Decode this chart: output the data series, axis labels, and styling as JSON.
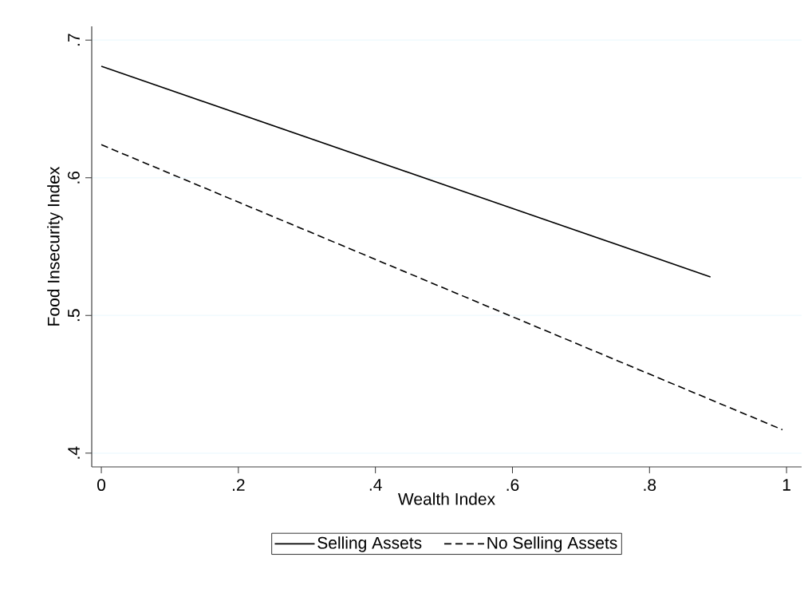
{
  "chart_data": {
    "type": "line",
    "xlabel": "Wealth Index",
    "ylabel": "Food Insecurity Index",
    "xlim": [
      -0.014,
      1.022
    ],
    "ylim": [
      0.39,
      0.71
    ],
    "xticks": [
      0,
      {
        "value": 0.2,
        "label": ".2"
      },
      {
        "value": 0.4,
        "label": ".4"
      },
      {
        "value": 0.6,
        "label": ".6"
      },
      {
        "value": 0.8,
        "label": ".8"
      },
      1
    ],
    "yticks": [
      {
        "value": 0.4,
        "label": ".4"
      },
      {
        "value": 0.5,
        "label": ".5"
      },
      {
        "value": 0.6,
        "label": ".6"
      },
      {
        "value": 0.7,
        "label": ".7"
      }
    ],
    "grid": "y",
    "legend": "bottom",
    "marker": "none",
    "series": [
      {
        "name": "Selling Assets",
        "color": "#000000",
        "line_style": "solid",
        "x": [
          0,
          0.889
        ],
        "values": [
          0.681,
          0.528
        ]
      },
      {
        "name": "No Selling Assets",
        "color": "#000000",
        "line_style": "dashed",
        "x": [
          0,
          0.994
        ],
        "values": [
          0.624,
          0.417
        ]
      }
    ]
  }
}
